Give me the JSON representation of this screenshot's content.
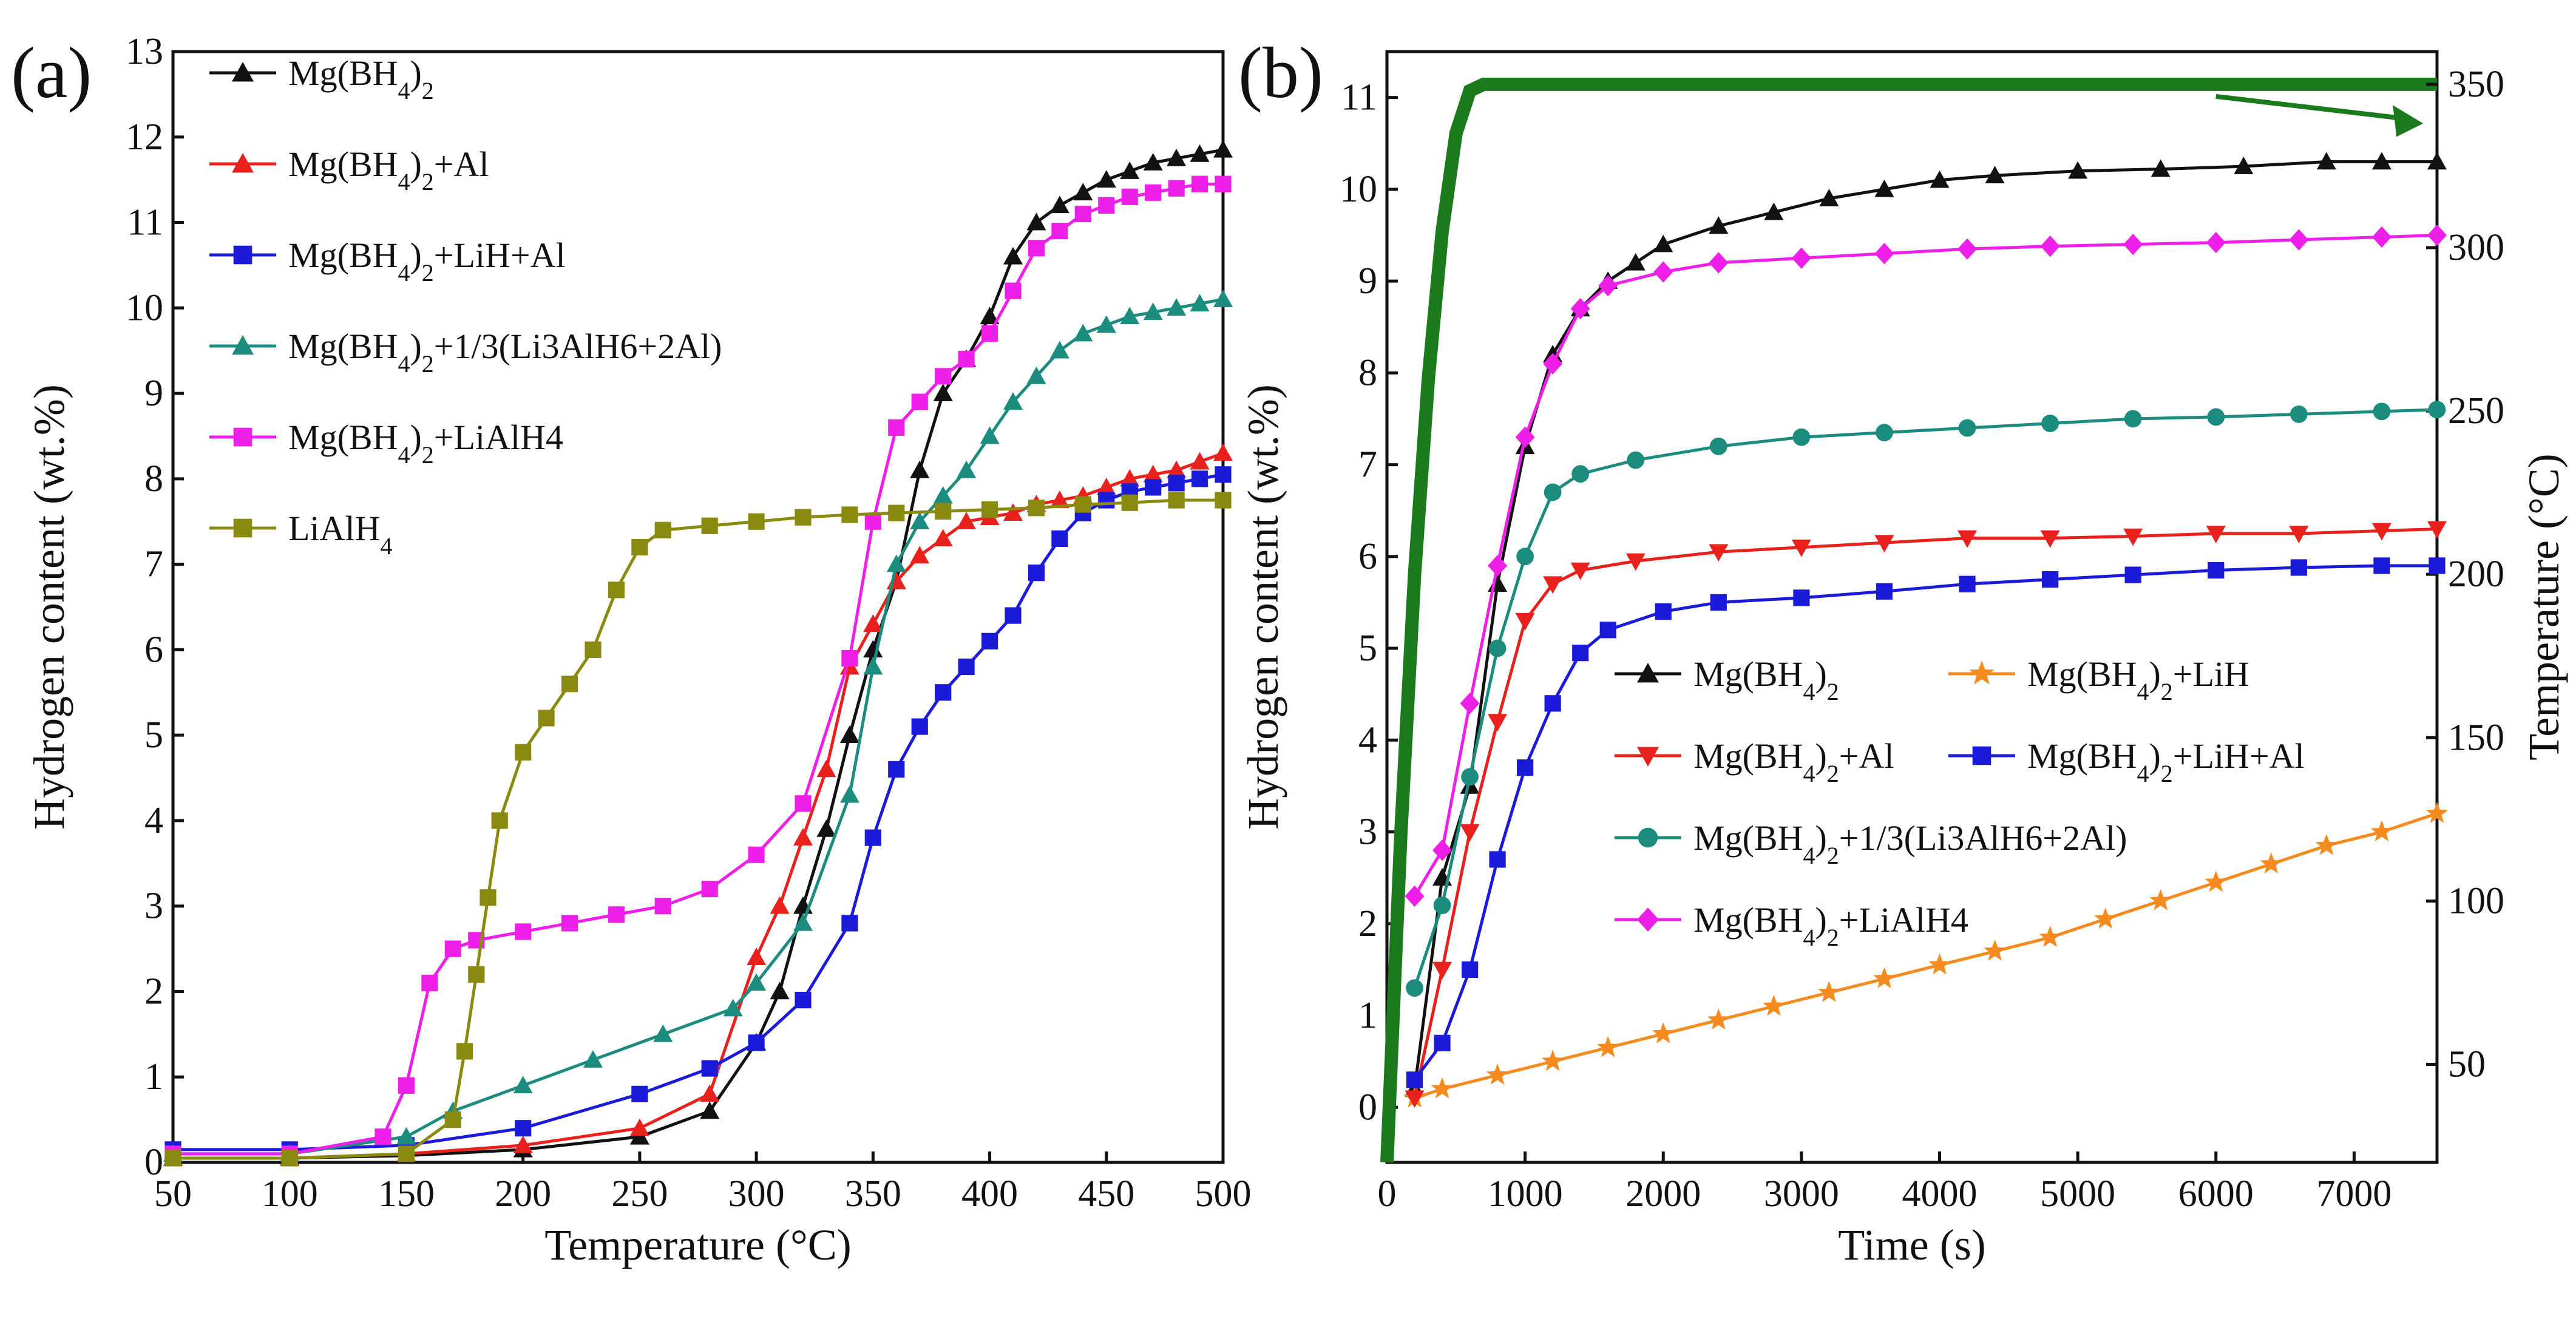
{
  "chart_data": [
    {
      "type": "scatter",
      "panel_label": "(a)",
      "xlabel": "Temperature (°C)",
      "ylabel": "Hydrogen content (wt.%)",
      "xlim": [
        50,
        500
      ],
      "ylim": [
        0,
        13
      ],
      "xticks": [
        "50",
        "100",
        "150",
        "200",
        "250",
        "300",
        "350",
        "400",
        "450",
        "500"
      ],
      "yticks": [
        "0",
        "1",
        "2",
        "3",
        "4",
        "5",
        "6",
        "7",
        "8",
        "9",
        "10",
        "11",
        "12",
        "13"
      ],
      "legend_position": "top-left",
      "series": [
        {
          "name": "Mg(BH4)2",
          "label_main": "Mg(BH",
          "label_sub": "4",
          "label_sub2": "",
          "label_tail": ")",
          "label_sub3": "2",
          "label_end": "",
          "color": "#111111",
          "marker": "triangle",
          "x": [
            50,
            100,
            150,
            200,
            250,
            280,
            300,
            310,
            320,
            330,
            340,
            350,
            360,
            370,
            380,
            390,
            400,
            410,
            420,
            430,
            440,
            450,
            460,
            470,
            480,
            490,
            500
          ],
          "y": [
            0.05,
            0.05,
            0.08,
            0.15,
            0.3,
            0.6,
            1.4,
            2.0,
            3.0,
            3.9,
            5.0,
            6.0,
            6.8,
            8.1,
            9.0,
            9.4,
            9.9,
            10.6,
            11.0,
            11.2,
            11.35,
            11.5,
            11.6,
            11.7,
            11.75,
            11.8,
            11.85
          ]
        },
        {
          "name": "Mg(BH4)2+Al",
          "label_main": "Mg(BH",
          "label_sub": "4",
          "label_sub2": "",
          "label_tail": ")",
          "label_sub3": "2",
          "label_end": "+Al",
          "color": "#e8211d",
          "marker": "triangle",
          "x": [
            50,
            100,
            150,
            200,
            250,
            280,
            300,
            310,
            320,
            330,
            340,
            350,
            360,
            370,
            380,
            390,
            400,
            410,
            420,
            430,
            440,
            450,
            460,
            470,
            480,
            490,
            500
          ],
          "y": [
            0.05,
            0.05,
            0.1,
            0.2,
            0.4,
            0.8,
            2.4,
            3.0,
            3.8,
            4.6,
            5.8,
            6.3,
            6.8,
            7.1,
            7.3,
            7.5,
            7.55,
            7.6,
            7.7,
            7.75,
            7.8,
            7.9,
            8.0,
            8.05,
            8.1,
            8.2,
            8.3
          ]
        },
        {
          "name": "Mg(BH4)2+LiH+Al",
          "label_main": "Mg(BH",
          "label_sub": "4",
          "label_sub2": "",
          "label_tail": ")",
          "label_sub3": "2",
          "label_end": "+LiH+Al",
          "color": "#1a1ad8",
          "marker": "square",
          "x": [
            50,
            100,
            150,
            200,
            250,
            280,
            300,
            320,
            340,
            350,
            360,
            370,
            380,
            390,
            400,
            410,
            420,
            430,
            440,
            450,
            460,
            470,
            480,
            490,
            500
          ],
          "y": [
            0.15,
            0.15,
            0.2,
            0.4,
            0.8,
            1.1,
            1.4,
            1.9,
            2.8,
            3.8,
            4.6,
            5.1,
            5.5,
            5.8,
            6.1,
            6.4,
            6.9,
            7.3,
            7.6,
            7.75,
            7.85,
            7.9,
            7.95,
            8.0,
            8.05
          ]
        },
        {
          "name": "Mg(BH4)2+1/3(Li3AlH6+2Al)",
          "label_main": "Mg(BH",
          "label_sub": "4",
          "label_sub2": "",
          "label_tail": ")",
          "label_sub3": "2",
          "label_end": "+1/3(Li3AlH6+2Al)",
          "color": "#1c8c7e",
          "marker": "triangle",
          "x": [
            50,
            100,
            150,
            170,
            200,
            230,
            260,
            290,
            300,
            320,
            340,
            350,
            360,
            370,
            380,
            390,
            400,
            410,
            420,
            430,
            440,
            450,
            460,
            470,
            480,
            490,
            500
          ],
          "y": [
            0.1,
            0.1,
            0.3,
            0.6,
            0.9,
            1.2,
            1.5,
            1.8,
            2.1,
            2.8,
            4.3,
            5.8,
            7.0,
            7.5,
            7.8,
            8.1,
            8.5,
            8.9,
            9.2,
            9.5,
            9.7,
            9.8,
            9.9,
            9.95,
            10.0,
            10.05,
            10.1
          ]
        },
        {
          "name": "Mg(BH4)2+LiAlH4",
          "label_main": "Mg(BH",
          "label_sub": "4",
          "label_sub2": "",
          "label_tail": ")",
          "label_sub3": "2",
          "label_end": "+LiAlH4",
          "color": "#ee1fe8",
          "marker": "square",
          "x": [
            50,
            100,
            140,
            150,
            160,
            170,
            180,
            200,
            220,
            240,
            260,
            280,
            300,
            320,
            340,
            350,
            360,
            370,
            380,
            390,
            400,
            410,
            420,
            430,
            440,
            450,
            460,
            470,
            480,
            490,
            500
          ],
          "y": [
            0.1,
            0.1,
            0.3,
            0.9,
            2.1,
            2.5,
            2.6,
            2.7,
            2.8,
            2.9,
            3.0,
            3.2,
            3.6,
            4.2,
            5.9,
            7.5,
            8.6,
            8.9,
            9.2,
            9.4,
            9.7,
            10.2,
            10.7,
            10.9,
            11.1,
            11.2,
            11.3,
            11.35,
            11.4,
            11.45,
            11.45
          ]
        },
        {
          "name": "LiAlH4",
          "label_main": "LiAlH",
          "label_sub": "4",
          "label_sub2": "",
          "label_tail": "",
          "label_sub3": "",
          "label_end": "",
          "color": "#8a8a10",
          "marker": "square",
          "x": [
            50,
            100,
            150,
            170,
            175,
            180,
            185,
            190,
            200,
            210,
            220,
            230,
            240,
            250,
            260,
            280,
            300,
            320,
            340,
            360,
            380,
            400,
            420,
            440,
            460,
            480,
            500
          ],
          "y": [
            0.05,
            0.05,
            0.1,
            0.5,
            1.3,
            2.2,
            3.1,
            4.0,
            4.8,
            5.2,
            5.6,
            6.0,
            6.7,
            7.2,
            7.4,
            7.45,
            7.5,
            7.55,
            7.58,
            7.6,
            7.62,
            7.64,
            7.66,
            7.7,
            7.72,
            7.75,
            7.75
          ]
        }
      ]
    },
    {
      "type": "scatter",
      "panel_label": "(b)",
      "xlabel": "Time (s)",
      "ylabel": "Hydrogen content (wt.%)",
      "y2label": "Temperature (°C)",
      "xlim": [
        0,
        7600
      ],
      "ylim": [
        -0.6,
        11.5
      ],
      "y2lim": [
        20,
        360
      ],
      "xticks": [
        "0",
        "1000",
        "2000",
        "3000",
        "4000",
        "5000",
        "6000",
        "7000"
      ],
      "yticks": [
        "0",
        "1",
        "2",
        "3",
        "4",
        "5",
        "6",
        "7",
        "8",
        "9",
        "10",
        "11"
      ],
      "y2ticks": [
        "50",
        "100",
        "150",
        "200",
        "250",
        "300",
        "350"
      ],
      "temperature_color": "#1b7a1b",
      "temperature_profile": {
        "t": [
          0,
          100,
          200,
          300,
          400,
          500,
          600,
          700,
          7600
        ],
        "T": [
          20,
          120,
          200,
          260,
          305,
          335,
          348,
          350,
          350
        ]
      },
      "legend_position": "lower-center",
      "series": [
        {
          "name": "Mg(BH4)2",
          "label_main": "Mg(BH",
          "label_sub": "4",
          "label_tail": ")",
          "label_sub3": "2",
          "label_end": "",
          "color": "#111111",
          "marker": "triangle",
          "x": [
            200,
            400,
            600,
            800,
            1000,
            1200,
            1400,
            1600,
            1800,
            2000,
            2400,
            2800,
            3200,
            3600,
            4000,
            4400,
            5000,
            5600,
            6200,
            6800,
            7200,
            7600
          ],
          "y": [
            0.2,
            2.5,
            3.5,
            5.7,
            7.2,
            8.2,
            8.7,
            9.0,
            9.2,
            9.4,
            9.6,
            9.75,
            9.9,
            10.0,
            10.1,
            10.15,
            10.2,
            10.22,
            10.25,
            10.3,
            10.3,
            10.3
          ]
        },
        {
          "name": "Mg(BH4)2+LiH",
          "label_main": "Mg(BH",
          "label_sub": "4",
          "label_tail": ")",
          "label_sub3": "2",
          "label_end": "+LiH",
          "color": "#f58a1f",
          "marker": "star",
          "x": [
            200,
            400,
            800,
            1200,
            1600,
            2000,
            2400,
            2800,
            3200,
            3600,
            4000,
            4400,
            4800,
            5200,
            5600,
            6000,
            6400,
            6800,
            7200,
            7600
          ],
          "y": [
            0.1,
            0.2,
            0.35,
            0.5,
            0.65,
            0.8,
            0.95,
            1.1,
            1.25,
            1.4,
            1.55,
            1.7,
            1.85,
            2.05,
            2.25,
            2.45,
            2.65,
            2.85,
            3.0,
            3.2
          ]
        },
        {
          "name": "Mg(BH4)2+Al",
          "label_main": "Mg(BH",
          "label_sub": "4",
          "label_tail": ")",
          "label_sub3": "2",
          "label_end": "+Al",
          "color": "#e8211d",
          "marker": "triangle-down",
          "x": [
            200,
            400,
            600,
            800,
            1000,
            1200,
            1400,
            1800,
            2400,
            3000,
            3600,
            4200,
            4800,
            5400,
            6000,
            6600,
            7200,
            7600
          ],
          "y": [
            0.1,
            1.5,
            3.0,
            4.2,
            5.3,
            5.7,
            5.85,
            5.95,
            6.05,
            6.1,
            6.15,
            6.2,
            6.2,
            6.22,
            6.25,
            6.25,
            6.28,
            6.3
          ]
        },
        {
          "name": "Mg(BH4)2+LiH+Al",
          "label_main": "Mg(BH",
          "label_sub": "4",
          "label_tail": ")",
          "label_sub3": "2",
          "label_end": "+LiH+Al",
          "color": "#1a1ad8",
          "marker": "square",
          "x": [
            200,
            400,
            600,
            800,
            1000,
            1200,
            1400,
            1600,
            2000,
            2400,
            3000,
            3600,
            4200,
            4800,
            5400,
            6000,
            6600,
            7200,
            7600
          ],
          "y": [
            0.3,
            0.7,
            1.5,
            2.7,
            3.7,
            4.4,
            4.95,
            5.2,
            5.4,
            5.5,
            5.55,
            5.62,
            5.7,
            5.75,
            5.8,
            5.85,
            5.88,
            5.9,
            5.9
          ]
        },
        {
          "name": "Mg(BH4)2+1/3(Li3AlH6+2Al)",
          "label_main": "Mg(BH",
          "label_sub": "4",
          "label_tail": ")",
          "label_sub3": "2",
          "label_end": "+1/3(Li3AlH6+2Al)",
          "color": "#1c8c7e",
          "marker": "circle",
          "x": [
            200,
            400,
            600,
            800,
            1000,
            1200,
            1400,
            1800,
            2400,
            3000,
            3600,
            4200,
            4800,
            5400,
            6000,
            6600,
            7200,
            7600
          ],
          "y": [
            1.3,
            2.2,
            3.6,
            5.0,
            6.0,
            6.7,
            6.9,
            7.05,
            7.2,
            7.3,
            7.35,
            7.4,
            7.45,
            7.5,
            7.52,
            7.55,
            7.58,
            7.6
          ]
        },
        {
          "name": "Mg(BH4)2+LiAlH4",
          "label_main": "Mg(BH",
          "label_sub": "4",
          "label_tail": ")",
          "label_sub3": "2",
          "label_end": "+LiAlH4",
          "color": "#ee1fe8",
          "marker": "diamond",
          "x": [
            200,
            400,
            600,
            800,
            1000,
            1200,
            1400,
            1600,
            2000,
            2400,
            3000,
            3600,
            4200,
            4800,
            5400,
            6000,
            6600,
            7200,
            7600
          ],
          "y": [
            2.3,
            2.8,
            4.4,
            5.9,
            7.3,
            8.1,
            8.7,
            8.95,
            9.1,
            9.2,
            9.25,
            9.3,
            9.35,
            9.38,
            9.4,
            9.42,
            9.45,
            9.48,
            9.5
          ]
        }
      ]
    }
  ]
}
